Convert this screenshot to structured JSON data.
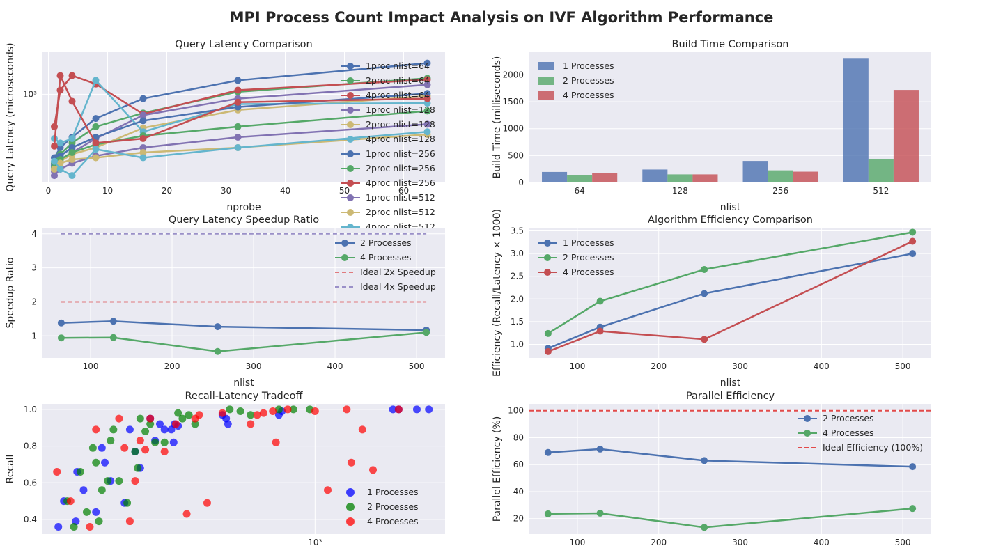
{
  "figure": {
    "title": "MPI Process Count Impact Analysis on IVF Algorithm Performance"
  },
  "colors": {
    "blue": "#4C72B0",
    "green": "#55A868",
    "red": "#C44E52",
    "purple": "#8172B2",
    "gold": "#CCB974",
    "cyan": "#64B5CD",
    "panel_bg": "#EAEAF2",
    "scatter_blue": "#0000FF",
    "scatter_green": "#008000",
    "scatter_red": "#FF0000",
    "ideal_red": "#E24A4A"
  },
  "chart_data": [
    {
      "id": "latency",
      "type": "line",
      "title": "Query Latency Comparison",
      "xlabel": "nprobe",
      "ylabel": "Query Latency (microseconds)",
      "xlim": [
        -1,
        67
      ],
      "ylim": [
        350,
        1650
      ],
      "yscale": "log",
      "xticks": [
        0,
        10,
        20,
        30,
        40,
        50,
        60
      ],
      "xtick_labels": [
        "0",
        "10",
        "20",
        "30",
        "40",
        "50",
        "60"
      ],
      "yticks": [
        1000
      ],
      "ytick_labels": [
        "10³"
      ],
      "legend_position": "upper right",
      "x": [
        1,
        2,
        4,
        8,
        16,
        32,
        64
      ],
      "series": [
        {
          "name": "1proc nlist=64",
          "color": "#4C72B0",
          "values": [
            470,
            530,
            600,
            750,
            950,
            1180,
            1450
          ]
        },
        {
          "name": "2proc nlist=64",
          "color": "#55A868",
          "values": [
            440,
            490,
            560,
            680,
            800,
            1030,
            1210
          ]
        },
        {
          "name": "4proc nlist=64",
          "color": "#C44E52",
          "values": [
            680,
            1050,
            1250,
            1130,
            790,
            1050,
            1190
          ]
        },
        {
          "name": "1proc nlist=128",
          "color": "#8172B2",
          "values": [
            400,
            450,
            500,
            590,
            780,
            950,
            1120
          ]
        },
        {
          "name": "2proc nlist=128",
          "color": "#CCB974",
          "values": [
            410,
            450,
            490,
            530,
            670,
            830,
            980
          ]
        },
        {
          "name": "4proc nlist=128",
          "color": "#64B5CD",
          "values": [
            590,
            560,
            590,
            1180,
            640,
            890,
            900
          ]
        },
        {
          "name": "1proc nlist=256",
          "color": "#4C72B0",
          "values": [
            430,
            480,
            530,
            600,
            730,
            860,
            1010
          ]
        },
        {
          "name": "2proc nlist=256",
          "color": "#55A868",
          "values": [
            420,
            460,
            500,
            550,
            610,
            680,
            820
          ]
        },
        {
          "name": "4proc nlist=256",
          "color": "#C44E52",
          "values": [
            540,
            1250,
            920,
            560,
            590,
            910,
            950
          ]
        },
        {
          "name": "1proc nlist=512",
          "color": "#8172B2",
          "values": [
            380,
            410,
            440,
            480,
            530,
            600,
            700
          ]
        },
        {
          "name": "2proc nlist=512",
          "color": "#CCB974",
          "values": [
            410,
            440,
            460,
            470,
            500,
            530,
            620
          ]
        },
        {
          "name": "4proc nlist=512",
          "color": "#64B5CD",
          "values": [
            450,
            410,
            380,
            520,
            470,
            530,
            640
          ]
        }
      ]
    },
    {
      "id": "build",
      "type": "bar",
      "title": "Build Time Comparison",
      "xlabel": "nlist",
      "ylabel": "Build Time (milliseconds)",
      "ylim": [
        0,
        2420
      ],
      "yticks": [
        0,
        500,
        1000,
        1500,
        2000
      ],
      "ytick_labels": [
        "0",
        "500",
        "1000",
        "1500",
        "2000"
      ],
      "legend_position": "upper left",
      "categories": [
        "64",
        "128",
        "256",
        "512"
      ],
      "series": [
        {
          "name": "1 Processes",
          "color": "#4C72B0",
          "values": [
            195,
            240,
            400,
            2300
          ]
        },
        {
          "name": "2 Processes",
          "color": "#55A868",
          "values": [
            135,
            150,
            225,
            440
          ]
        },
        {
          "name": "4 Processes",
          "color": "#C44E52",
          "values": [
            180,
            150,
            200,
            1720
          ]
        }
      ]
    },
    {
      "id": "speedup",
      "type": "line",
      "title": "Query Latency Speedup Ratio",
      "xlabel": "nlist",
      "ylabel": "Speedup Ratio",
      "xlim": [
        41,
        535
      ],
      "ylim": [
        0.35,
        4.18
      ],
      "xticks": [
        100,
        200,
        300,
        400,
        500
      ],
      "xtick_labels": [
        "100",
        "200",
        "300",
        "400",
        "500"
      ],
      "yticks": [
        1,
        2,
        3,
        4
      ],
      "ytick_labels": [
        "1",
        "2",
        "3",
        "4"
      ],
      "legend_position": "upper right",
      "x": [
        64,
        128,
        256,
        512
      ],
      "series": [
        {
          "name": "2 Processes",
          "color": "#4C72B0",
          "values": [
            1.38,
            1.43,
            1.27,
            1.17
          ]
        },
        {
          "name": "4 Processes",
          "color": "#55A868",
          "values": [
            0.94,
            0.95,
            0.54,
            1.1
          ]
        }
      ],
      "reference_lines": [
        {
          "name": "Ideal 2x Speedup",
          "color": "#E07A7E",
          "value": 2
        },
        {
          "name": "Ideal 4x Speedup",
          "color": "#9A90C8",
          "value": 4
        }
      ]
    },
    {
      "id": "efficiency",
      "type": "line",
      "title": "Algorithm Efficiency Comparison",
      "xlabel": "nlist",
      "ylabel": "Efficiency (Recall/Latency × 1000)",
      "xlim": [
        41,
        535
      ],
      "ylim": [
        0.7,
        3.57
      ],
      "xticks": [
        100,
        200,
        300,
        400,
        500
      ],
      "xtick_labels": [
        "100",
        "200",
        "300",
        "400",
        "500"
      ],
      "yticks": [
        1.0,
        1.5,
        2.0,
        2.5,
        3.0,
        3.5
      ],
      "ytick_labels": [
        "1.0",
        "1.5",
        "2.0",
        "2.5",
        "3.0",
        "3.5"
      ],
      "legend_position": "upper left",
      "x": [
        64,
        128,
        256,
        512
      ],
      "series": [
        {
          "name": "1 Processes",
          "color": "#4C72B0",
          "values": [
            0.91,
            1.38,
            2.12,
            3.0
          ]
        },
        {
          "name": "2 Processes",
          "color": "#55A868",
          "values": [
            1.24,
            1.95,
            2.65,
            3.47
          ]
        },
        {
          "name": "4 Processes",
          "color": "#C44E52",
          "values": [
            0.84,
            1.29,
            1.11,
            3.27
          ]
        }
      ]
    },
    {
      "id": "tradeoff",
      "type": "scatter",
      "title": "Recall-Latency Tradeoff",
      "xlabel": "",
      "ylabel": "Recall",
      "xscale": "log",
      "xlim": [
        350,
        1650
      ],
      "ylim": [
        0.32,
        1.03
      ],
      "xticks": [
        1000
      ],
      "xtick_labels": [
        "10³"
      ],
      "yticks": [
        0.4,
        0.6,
        0.8,
        1.0
      ],
      "ytick_labels": [
        "0.4",
        "0.6",
        "0.8",
        "1.0"
      ],
      "legend_position": "lower right",
      "series": [
        {
          "name": "1 Processes",
          "color": "#0000FF",
          "points": [
            [
              372,
              0.36
            ],
            [
              380,
              0.5
            ],
            [
              400,
              0.66
            ],
            [
              398,
              0.39
            ],
            [
              410,
              0.56
            ],
            [
              430,
              0.44
            ],
            [
              440,
              0.79
            ],
            [
              445,
              0.71
            ],
            [
              455,
              0.61
            ],
            [
              480,
              0.49
            ],
            [
              490,
              0.89
            ],
            [
              500,
              0.77
            ],
            [
              510,
              0.68
            ],
            [
              530,
              0.95
            ],
            [
              540,
              0.83
            ],
            [
              550,
              0.92
            ],
            [
              560,
              0.89
            ],
            [
              575,
              0.89
            ],
            [
              580,
              0.82
            ],
            [
              582,
              0.92
            ],
            [
              590,
              0.91
            ],
            [
              700,
              0.97
            ],
            [
              710,
              0.95
            ],
            [
              715,
              0.92
            ],
            [
              870,
              0.97
            ],
            [
              880,
              0.99
            ],
            [
              1350,
              1.0
            ],
            [
              1380,
              1.0
            ],
            [
              1550,
              1.0
            ],
            [
              1480,
              1.0
            ]
          ]
        },
        {
          "name": "2 Processes",
          "color": "#008000",
          "points": [
            [
              385,
              0.5
            ],
            [
              395,
              0.36
            ],
            [
              405,
              0.66
            ],
            [
              415,
              0.44
            ],
            [
              425,
              0.79
            ],
            [
              430,
              0.71
            ],
            [
              435,
              0.39
            ],
            [
              440,
              0.56
            ],
            [
              450,
              0.61
            ],
            [
              455,
              0.83
            ],
            [
              460,
              0.89
            ],
            [
              470,
              0.61
            ],
            [
              485,
              0.49
            ],
            [
              500,
              0.77
            ],
            [
              505,
              0.68
            ],
            [
              510,
              0.95
            ],
            [
              520,
              0.88
            ],
            [
              530,
              0.92
            ],
            [
              540,
              0.82
            ],
            [
              560,
              0.82
            ],
            [
              590,
              0.98
            ],
            [
              600,
              0.95
            ],
            [
              615,
              0.97
            ],
            [
              630,
              0.92
            ],
            [
              720,
              1.0
            ],
            [
              750,
              0.99
            ],
            [
              780,
              0.97
            ],
            [
              870,
              1.0
            ],
            [
              920,
              1.0
            ],
            [
              980,
              1.0
            ]
          ]
        },
        {
          "name": "4 Processes",
          "color": "#FF0000",
          "points": [
            [
              370,
              0.66
            ],
            [
              390,
              0.5
            ],
            [
              420,
              0.36
            ],
            [
              430,
              0.89
            ],
            [
              470,
              0.95
            ],
            [
              480,
              0.79
            ],
            [
              490,
              0.39
            ],
            [
              500,
              0.61
            ],
            [
              510,
              0.83
            ],
            [
              520,
              0.78
            ],
            [
              530,
              0.95
            ],
            [
              560,
              0.77
            ],
            [
              585,
              0.92
            ],
            [
              610,
              0.43
            ],
            [
              630,
              0.95
            ],
            [
              640,
              0.97
            ],
            [
              660,
              0.49
            ],
            [
              700,
              0.98
            ],
            [
              780,
              0.92
            ],
            [
              800,
              0.97
            ],
            [
              820,
              0.98
            ],
            [
              850,
              0.99
            ],
            [
              860,
              0.82
            ],
            [
              900,
              1.0
            ],
            [
              1000,
              0.99
            ],
            [
              1050,
              0.56
            ],
            [
              1130,
              1.0
            ],
            [
              1150,
              0.71
            ],
            [
              1200,
              0.89
            ],
            [
              1250,
              0.67
            ],
            [
              1380,
              1.0
            ]
          ]
        }
      ]
    },
    {
      "id": "parallel",
      "type": "line",
      "title": "Parallel Efficiency",
      "xlabel": "",
      "ylabel": "Parallel Efficiency (%)",
      "xlim": [
        41,
        535
      ],
      "ylim": [
        8.5,
        105
      ],
      "xticks": [
        100,
        200,
        300,
        400,
        500
      ],
      "xtick_labels": [
        "100",
        "200",
        "300",
        "400",
        "500"
      ],
      "yticks": [
        20,
        40,
        60,
        80,
        100
      ],
      "ytick_labels": [
        "20",
        "40",
        "60",
        "80",
        "100"
      ],
      "legend_position": "upper right",
      "x": [
        64,
        128,
        256,
        512
      ],
      "series": [
        {
          "name": "2 Processes",
          "color": "#4C72B0",
          "values": [
            69,
            71.5,
            63,
            58.5
          ]
        },
        {
          "name": "4 Processes",
          "color": "#55A868",
          "values": [
            23.5,
            24,
            13.5,
            27.5
          ]
        }
      ],
      "reference_lines": [
        {
          "name": "Ideal Efficiency (100%)",
          "color": "#E24A4A",
          "value": 100
        }
      ]
    }
  ]
}
